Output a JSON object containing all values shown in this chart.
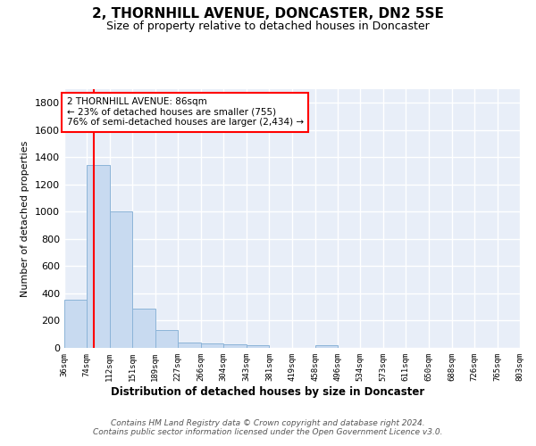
{
  "title": "2, THORNHILL AVENUE, DONCASTER, DN2 5SE",
  "subtitle": "Size of property relative to detached houses in Doncaster",
  "xlabel": "Distribution of detached houses by size in Doncaster",
  "ylabel": "Number of detached properties",
  "bar_color": "#c8daf0",
  "bar_edge_color": "#8cb4d8",
  "red_line_x": 86,
  "bin_edges": [
    36,
    74,
    112,
    151,
    189,
    227,
    266,
    304,
    343,
    381,
    419,
    458,
    496,
    534,
    573,
    611,
    650,
    688,
    726,
    765,
    803
  ],
  "bar_heights": [
    355,
    1340,
    1005,
    290,
    130,
    40,
    35,
    25,
    18,
    0,
    0,
    20,
    0,
    0,
    0,
    0,
    0,
    0,
    0,
    0
  ],
  "ylim": [
    0,
    1900
  ],
  "yticks": [
    0,
    200,
    400,
    600,
    800,
    1000,
    1200,
    1400,
    1600,
    1800
  ],
  "annotation_text": "2 THORNHILL AVENUE: 86sqm\n← 23% of detached houses are smaller (755)\n76% of semi-detached houses are larger (2,434) →",
  "footnote": "Contains HM Land Registry data © Crown copyright and database right 2024.\nContains public sector information licensed under the Open Government Licence v3.0.",
  "bg_color": "#e8eef8",
  "grid_color": "white",
  "tick_labels": [
    "36sqm",
    "74sqm",
    "112sqm",
    "151sqm",
    "189sqm",
    "227sqm",
    "266sqm",
    "304sqm",
    "343sqm",
    "381sqm",
    "419sqm",
    "458sqm",
    "496sqm",
    "534sqm",
    "573sqm",
    "611sqm",
    "650sqm",
    "688sqm",
    "726sqm",
    "765sqm",
    "803sqm"
  ]
}
